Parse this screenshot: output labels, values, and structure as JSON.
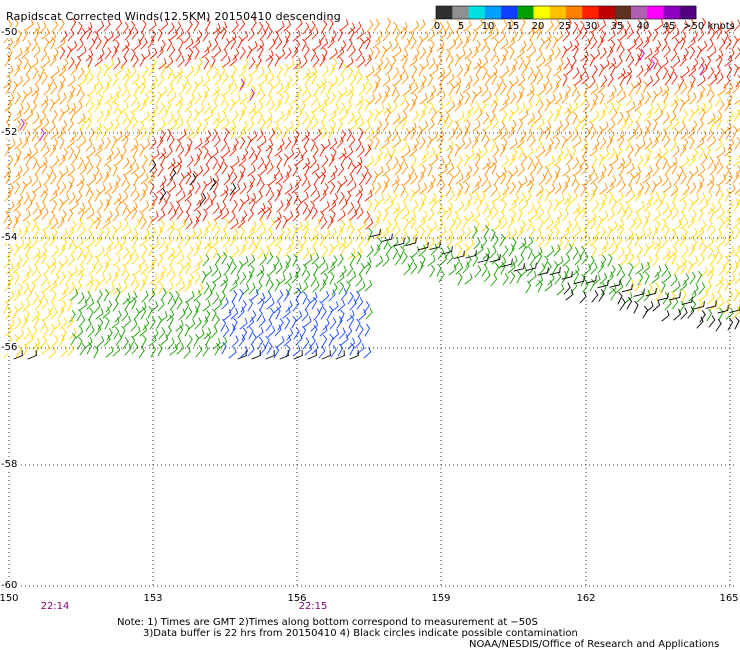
{
  "title": "Rapidscat Corrected Winds(12.5KM) 20150410 descending",
  "legend": {
    "labels": [
      "0",
      "5",
      "10",
      "15",
      "20",
      "25",
      "30",
      "35",
      "40",
      "45",
      ">50 knots"
    ],
    "colors": [
      "#303030",
      "#909090",
      "#00e0e0",
      "#00a0ff",
      "#1040ff",
      "#00a000",
      "#ffff00",
      "#ffc000",
      "#ff8000",
      "#ff2000",
      "#c00000",
      "#603020",
      "#b060b0",
      "#ff00ff",
      "#9000c0",
      "#500080"
    ]
  },
  "axes": {
    "lat_labels": [
      "-50",
      "-52",
      "-54",
      "-56",
      "-58",
      "-60"
    ],
    "lon_labels": [
      "150",
      "153",
      "156",
      "159",
      "162",
      "165"
    ],
    "time_labels": [
      "22:14",
      "22:15"
    ]
  },
  "notes": {
    "line1": "Note: 1) Times are GMT 2)Times along bottom correspond to measurement at −50S",
    "line2": "3)Data buffer is 22 hrs from 20150410 4) Black circles indicate possible contamination",
    "credit": "NOAA/NESDIS/Office of Research and Applications"
  },
  "colors": {
    "grid": "#000000",
    "slow_barb": "#000000",
    "green": "#1aa000",
    "blue": "#1848ff",
    "yellow": "#ffd800",
    "orange": "#ff9000",
    "red": "#ee2200",
    "purple": "#c000c0"
  }
}
